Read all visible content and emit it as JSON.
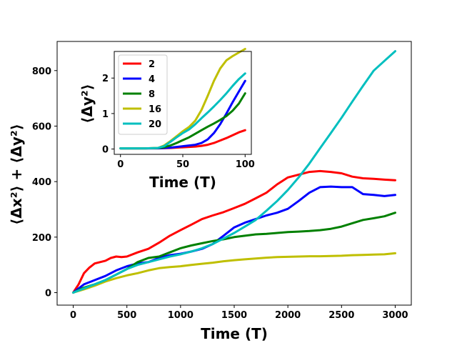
{
  "chart_data": [
    {
      "type": "line",
      "title": "",
      "xlabel": "Time (T)",
      "ylabel": "⟨Δx²⟩ + ⟨Δy²⟩",
      "xlim": [
        -150,
        3150
      ],
      "ylim": [
        -45,
        905
      ],
      "xticks": [
        0,
        500,
        1000,
        1500,
        2000,
        2500,
        3000
      ],
      "yticks": [
        0,
        200,
        400,
        600,
        800
      ],
      "series": [
        {
          "name": "2",
          "color": "#ff0000",
          "x": [
            0,
            50,
            100,
            150,
            200,
            250,
            300,
            350,
            400,
            450,
            500,
            600,
            700,
            800,
            900,
            1000,
            1100,
            1200,
            1300,
            1400,
            1500,
            1600,
            1700,
            1800,
            1900,
            2000,
            2100,
            2200,
            2300,
            2400,
            2500,
            2600,
            2700,
            2800,
            2900,
            3000
          ],
          "y": [
            0,
            30,
            70,
            90,
            105,
            110,
            115,
            125,
            130,
            128,
            130,
            145,
            158,
            180,
            205,
            225,
            245,
            265,
            278,
            290,
            305,
            320,
            340,
            360,
            390,
            415,
            425,
            435,
            438,
            435,
            430,
            418,
            412,
            410,
            407,
            405
          ]
        },
        {
          "name": "4",
          "color": "#0000ff",
          "x": [
            0,
            100,
            200,
            300,
            400,
            500,
            600,
            700,
            800,
            900,
            1000,
            1100,
            1200,
            1300,
            1400,
            1500,
            1600,
            1700,
            1800,
            1900,
            2000,
            2100,
            2200,
            2300,
            2400,
            2500,
            2600,
            2700,
            2800,
            2900,
            3000
          ],
          "y": [
            0,
            30,
            45,
            60,
            80,
            95,
            105,
            110,
            125,
            135,
            140,
            148,
            158,
            175,
            205,
            235,
            252,
            265,
            278,
            288,
            302,
            330,
            360,
            380,
            382,
            380,
            380,
            355,
            352,
            348,
            352
          ]
        },
        {
          "name": "8",
          "color": "#008000",
          "x": [
            0,
            100,
            200,
            300,
            400,
            500,
            600,
            700,
            800,
            900,
            1000,
            1100,
            1200,
            1300,
            1400,
            1500,
            1600,
            1700,
            1800,
            1900,
            2000,
            2100,
            2200,
            2300,
            2400,
            2500,
            2600,
            2700,
            2800,
            2900,
            3000
          ],
          "y": [
            0,
            18,
            30,
            45,
            65,
            85,
            110,
            125,
            130,
            145,
            160,
            170,
            178,
            186,
            192,
            200,
            205,
            210,
            212,
            215,
            218,
            220,
            222,
            225,
            230,
            238,
            250,
            262,
            268,
            275,
            288
          ]
        },
        {
          "name": "16",
          "color": "#bfbf00",
          "x": [
            0,
            100,
            200,
            300,
            400,
            500,
            600,
            700,
            800,
            900,
            1000,
            1100,
            1200,
            1300,
            1400,
            1500,
            1600,
            1700,
            1800,
            1900,
            2000,
            2100,
            2200,
            2300,
            2400,
            2500,
            2600,
            2700,
            2800,
            2900,
            3000
          ],
          "y": [
            0,
            12,
            25,
            40,
            52,
            62,
            70,
            80,
            88,
            92,
            95,
            100,
            104,
            108,
            113,
            117,
            120,
            123,
            126,
            128,
            129,
            130,
            131,
            131,
            132,
            133,
            135,
            136,
            137,
            138,
            142
          ]
        },
        {
          "name": "20",
          "color": "#00bfbf",
          "x": [
            0,
            100,
            200,
            300,
            400,
            500,
            600,
            700,
            800,
            900,
            1000,
            1100,
            1200,
            1300,
            1400,
            1500,
            1600,
            1700,
            1800,
            1900,
            2000,
            2100,
            2200,
            2300,
            2400,
            2500,
            2600,
            2700,
            2800,
            2900,
            3000
          ],
          "y": [
            0,
            15,
            30,
            45,
            65,
            85,
            100,
            110,
            120,
            130,
            138,
            148,
            160,
            175,
            195,
            215,
            238,
            262,
            295,
            330,
            370,
            415,
            465,
            520,
            575,
            630,
            688,
            745,
            800,
            835,
            870
          ]
        }
      ]
    },
    {
      "type": "line",
      "title": "",
      "xlabel": "Time (T)",
      "ylabel": "⟨Δy²⟩",
      "xlim": [
        -5,
        105
      ],
      "ylim": [
        -0.15,
        2.75
      ],
      "xticks": [
        0,
        50,
        100
      ],
      "yticks": [
        0,
        1,
        2
      ],
      "legend_position": "upper-left",
      "series": [
        {
          "name": "2",
          "color": "#ff0000",
          "x": [
            0,
            10,
            20,
            30,
            40,
            50,
            55,
            60,
            65,
            70,
            75,
            80,
            85,
            90,
            95,
            100
          ],
          "y": [
            0.02,
            0.02,
            0.02,
            0.02,
            0.03,
            0.05,
            0.06,
            0.07,
            0.09,
            0.12,
            0.17,
            0.24,
            0.31,
            0.39,
            0.47,
            0.53
          ]
        },
        {
          "name": "4",
          "color": "#0000ff",
          "x": [
            0,
            10,
            20,
            30,
            40,
            50,
            55,
            60,
            65,
            70,
            75,
            80,
            85,
            90,
            95,
            100
          ],
          "y": [
            0.02,
            0.02,
            0.02,
            0.02,
            0.04,
            0.08,
            0.1,
            0.12,
            0.17,
            0.27,
            0.45,
            0.7,
            1.0,
            1.32,
            1.62,
            1.92
          ]
        },
        {
          "name": "8",
          "color": "#008000",
          "x": [
            0,
            10,
            20,
            30,
            35,
            40,
            45,
            50,
            55,
            60,
            65,
            70,
            75,
            80,
            85,
            90,
            95,
            100
          ],
          "y": [
            0.02,
            0.02,
            0.02,
            0.03,
            0.05,
            0.1,
            0.17,
            0.25,
            0.33,
            0.43,
            0.53,
            0.63,
            0.72,
            0.82,
            0.93,
            1.08,
            1.28,
            1.57
          ]
        },
        {
          "name": "16",
          "color": "#bfbf00",
          "x": [
            0,
            10,
            20,
            30,
            35,
            40,
            45,
            50,
            55,
            60,
            65,
            70,
            75,
            80,
            85,
            90,
            95,
            100
          ],
          "y": [
            0.02,
            0.02,
            0.02,
            0.03,
            0.1,
            0.22,
            0.36,
            0.5,
            0.62,
            0.8,
            1.1,
            1.5,
            1.92,
            2.27,
            2.5,
            2.62,
            2.72,
            2.82
          ]
        },
        {
          "name": "20",
          "color": "#00bfbf",
          "x": [
            0,
            10,
            20,
            30,
            35,
            40,
            45,
            50,
            55,
            60,
            65,
            70,
            75,
            80,
            85,
            90,
            95,
            100
          ],
          "y": [
            0.02,
            0.02,
            0.02,
            0.03,
            0.08,
            0.2,
            0.33,
            0.45,
            0.55,
            0.7,
            0.87,
            1.03,
            1.2,
            1.38,
            1.57,
            1.78,
            1.97,
            2.13
          ]
        }
      ]
    }
  ]
}
